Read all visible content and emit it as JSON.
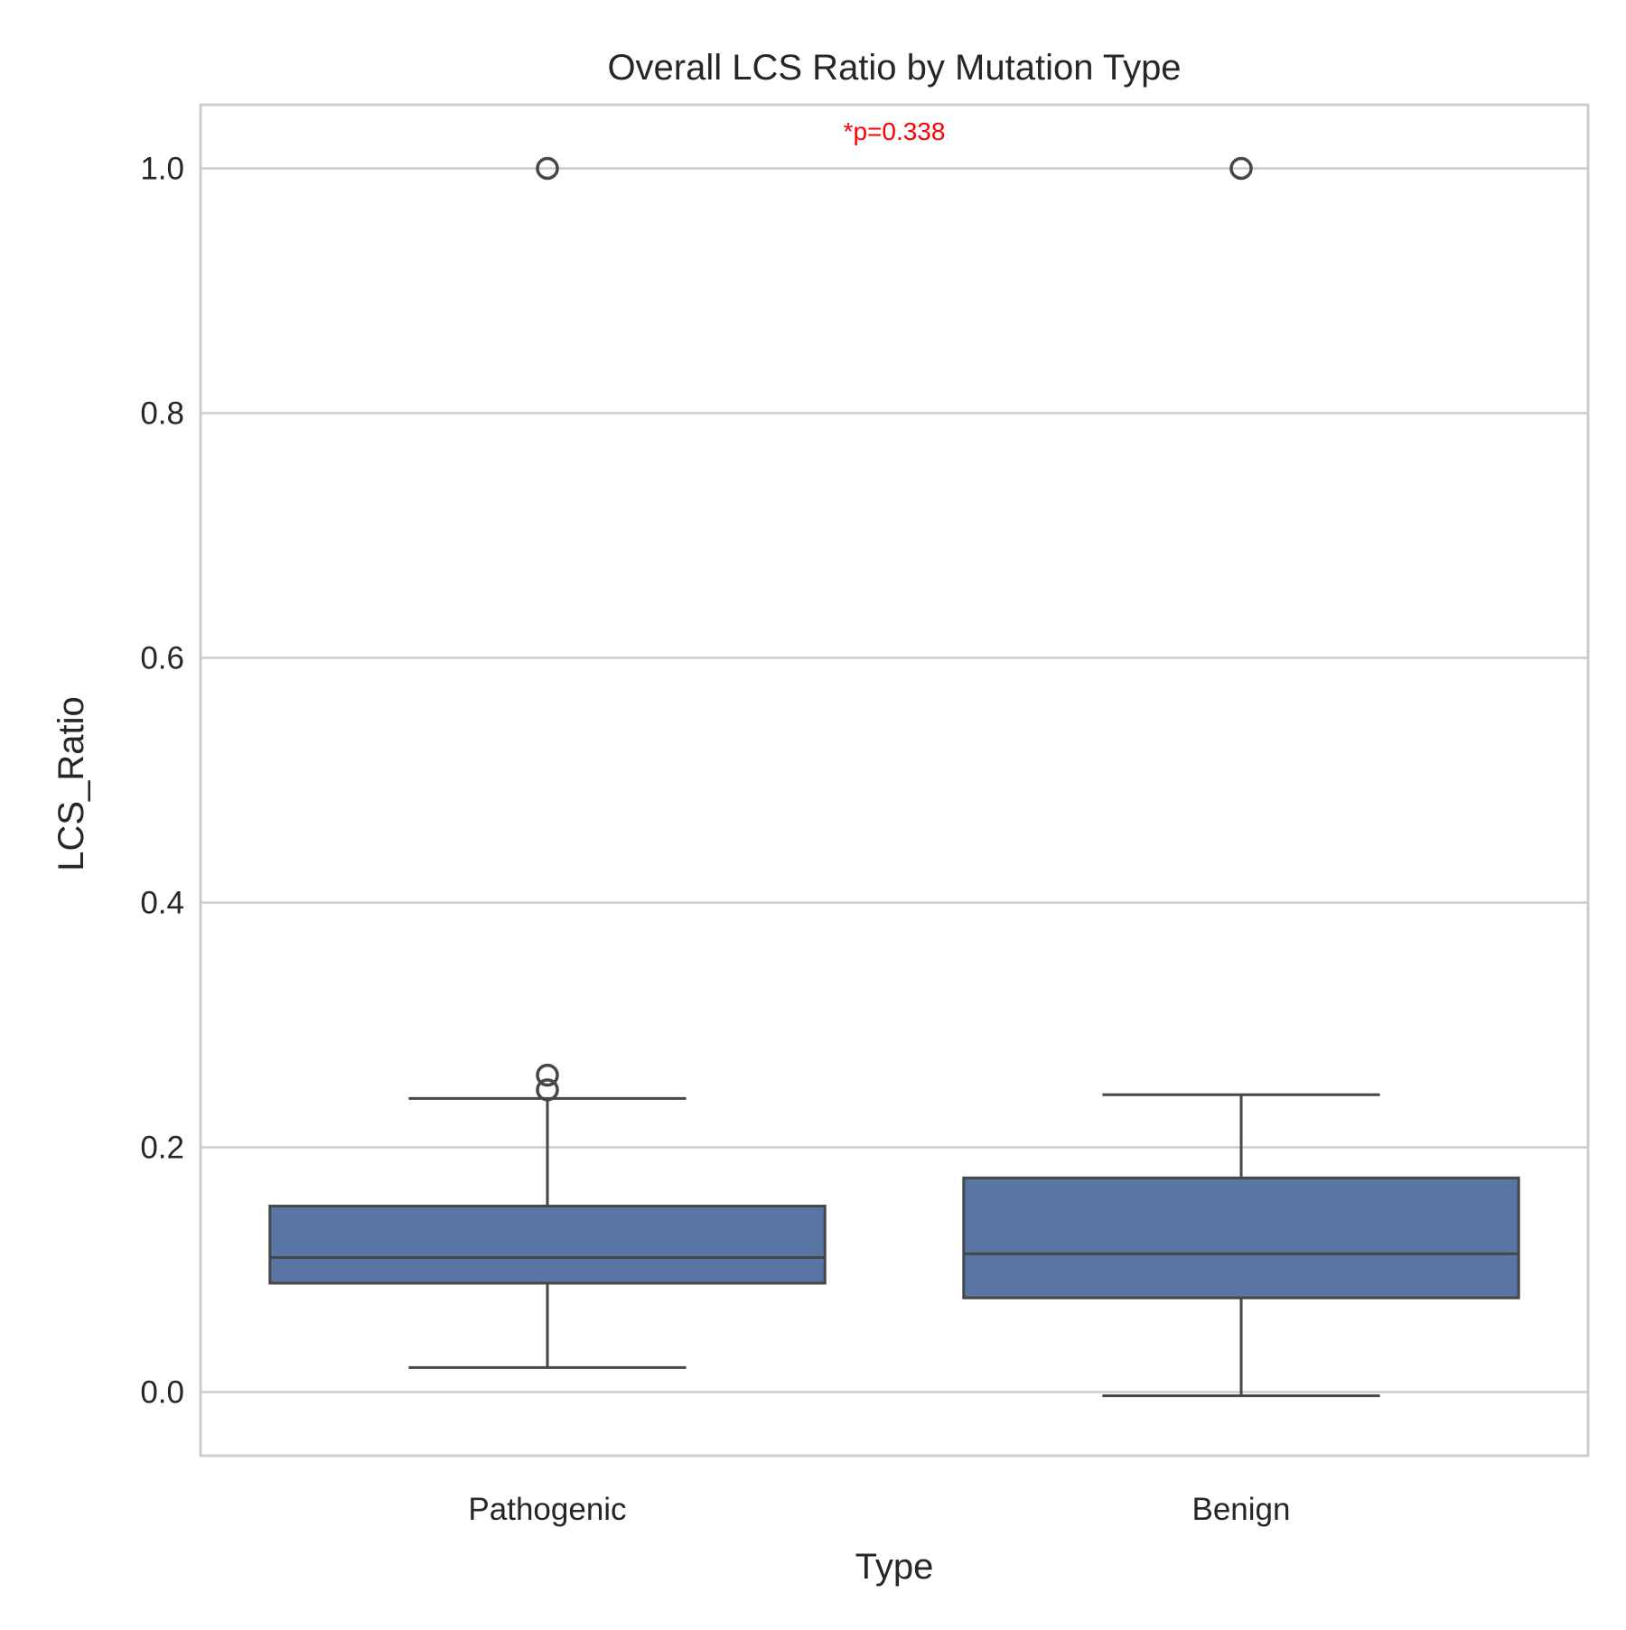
{
  "chart_data": {
    "type": "box",
    "title": "Overall LCS Ratio by Mutation Type",
    "xlabel": "Type",
    "ylabel": "LCS_Ratio",
    "categories": [
      "Pathogenic",
      "Benign"
    ],
    "ylim": [
      -0.052,
      1.052
    ],
    "yticks": [
      0.0,
      0.2,
      0.4,
      0.6,
      0.8,
      1.0
    ],
    "ytick_labels": [
      "0.0",
      "0.2",
      "0.4",
      "0.6",
      "0.8",
      "1.0"
    ],
    "grid": true,
    "boxes": [
      {
        "category": "Pathogenic",
        "whisker_low": 0.02,
        "q1": 0.089,
        "median": 0.11,
        "q3": 0.152,
        "whisker_high": 0.24,
        "outliers": [
          0.247,
          0.259,
          1.0
        ]
      },
      {
        "category": "Benign",
        "whisker_low": -0.003,
        "q1": 0.077,
        "median": 0.113,
        "q3": 0.175,
        "whisker_high": 0.243,
        "outliers": [
          1.0
        ]
      }
    ],
    "annotations": [
      {
        "text": "*p=0.338",
        "color": "#ff0000"
      }
    ],
    "colors": {
      "box_fill": "#5875a4",
      "line": "#464646",
      "grid": "#cccccc",
      "frame": "#cccccc",
      "text": "#262626"
    }
  }
}
